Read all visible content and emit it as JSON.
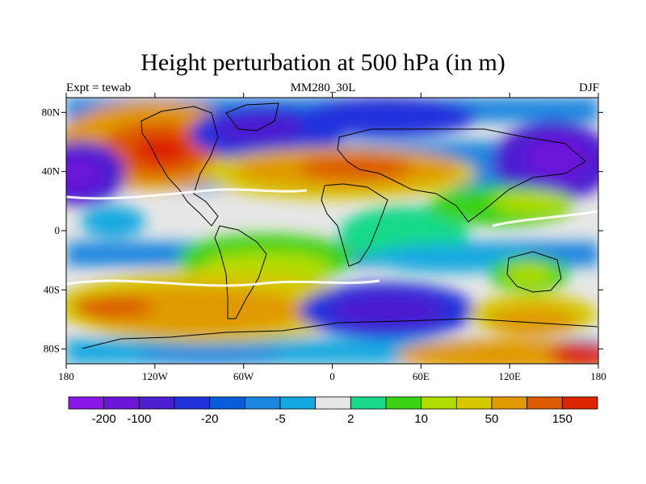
{
  "figure": {
    "title": "Height perturbation at 500 hPa (in m)",
    "left_label": "Expt = tewab",
    "center_label": "MM280_30L",
    "right_label": "DJF"
  },
  "map": {
    "projection": "cylindrical equidistant",
    "lon_range": [
      -180,
      180
    ],
    "lat_range": [
      -90,
      90
    ],
    "lon_ticks": [
      "180",
      "120W",
      "60W",
      "0",
      "60E",
      "120E",
      "180"
    ],
    "lat_ticks": [
      "80N",
      "40N",
      "0",
      "40S",
      "80S"
    ],
    "background": "#e6e6e6"
  },
  "colorbar": {
    "colors": [
      "#8a17e8",
      "#6a15d8",
      "#4b1ed0",
      "#2233dc",
      "#0a5cd8",
      "#1a86e0",
      "#13a9e0",
      "#e6e6e6",
      "#19d98a",
      "#3ad212",
      "#b0dc00",
      "#d6c800",
      "#e09a00",
      "#dc5a00",
      "#dc2400"
    ],
    "labels": [
      {
        "text": "-200",
        "after_index": 1
      },
      {
        "text": "-100",
        "after_index": 2
      },
      {
        "text": "-20",
        "after_index": 4
      },
      {
        "text": "-5",
        "after_index": 6
      },
      {
        "text": "2",
        "after_index": 8
      },
      {
        "text": "10",
        "after_index": 10
      },
      {
        "text": "50",
        "after_index": 12
      },
      {
        "text": "150",
        "after_index": 14
      }
    ]
  }
}
